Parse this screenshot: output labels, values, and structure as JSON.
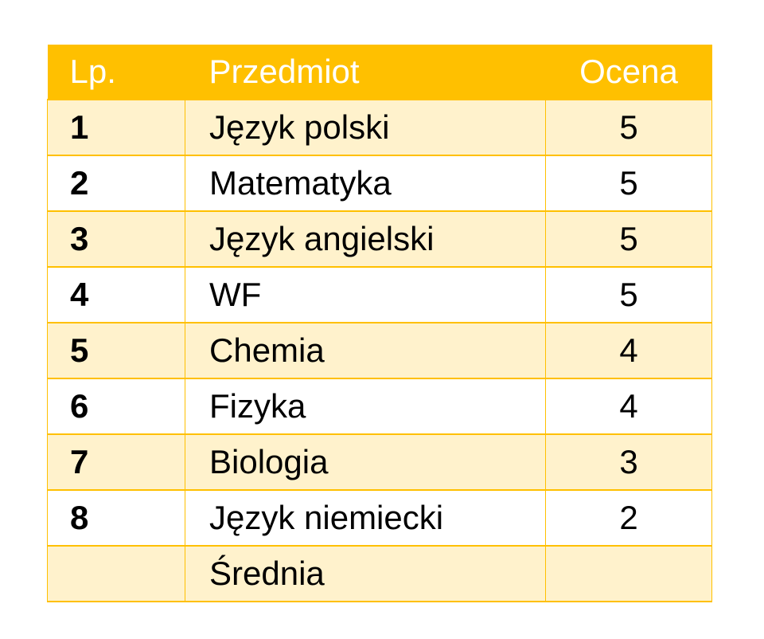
{
  "table": {
    "header": {
      "lp": "Lp.",
      "subject": "Przedmiot",
      "grade": "Ocena"
    },
    "rows": [
      {
        "lp": "1",
        "subject": "Język polski",
        "grade": "5"
      },
      {
        "lp": "2",
        "subject": "Matematyka",
        "grade": "5"
      },
      {
        "lp": "3",
        "subject": "Język angielski",
        "grade": "5"
      },
      {
        "lp": "4",
        "subject": "WF",
        "grade": "5"
      },
      {
        "lp": "5",
        "subject": "Chemia",
        "grade": "4"
      },
      {
        "lp": "6",
        "subject": "Fizyka",
        "grade": "4"
      },
      {
        "lp": "7",
        "subject": "Biologia",
        "grade": "3"
      },
      {
        "lp": "8",
        "subject": "Język niemiecki",
        "grade": "2"
      }
    ],
    "summary": {
      "lp": "",
      "subject": "Średnia",
      "grade": ""
    }
  },
  "colors": {
    "header_background": "#ffc000",
    "header_text": "#ffffff",
    "band_background": "#fff2cc",
    "plain_background": "#ffffff",
    "border": "#ffc000"
  }
}
